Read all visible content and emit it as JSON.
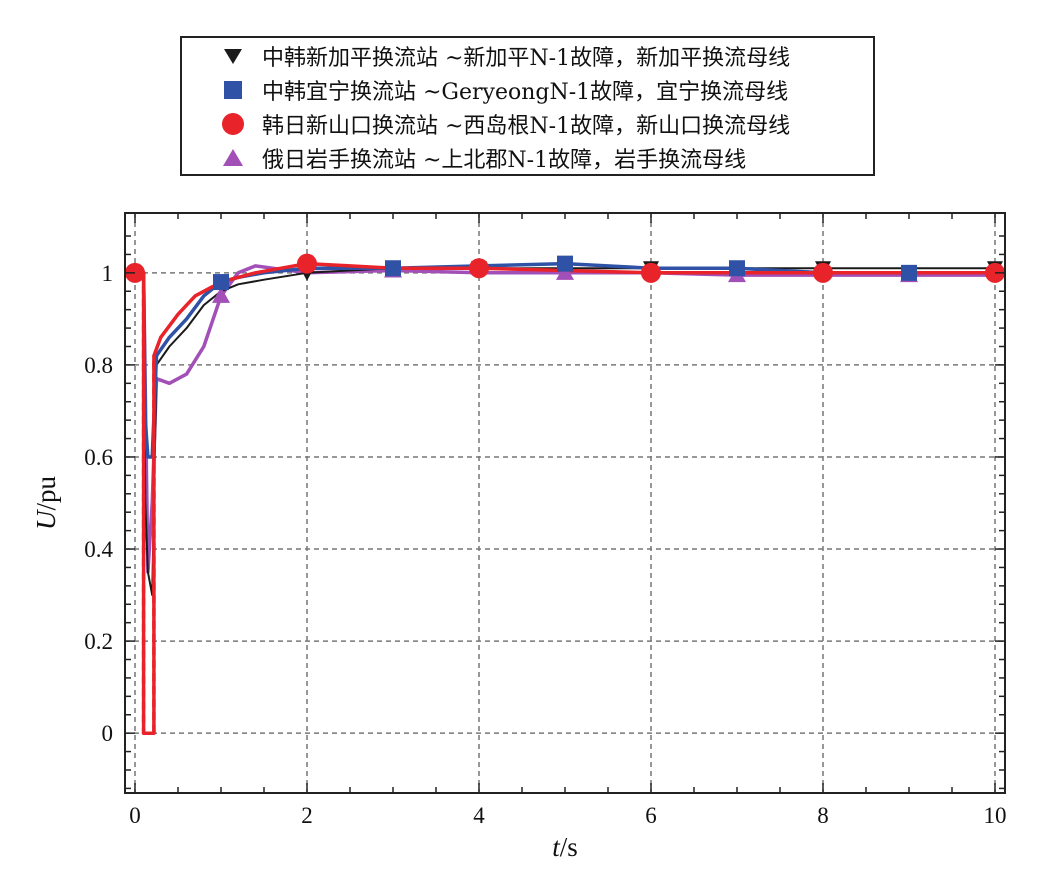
{
  "colors": {
    "black": "#1a1a1a",
    "blue": "#2f52a6",
    "red": "#e8232a",
    "purple": "#a24fb8",
    "grid": "#777777",
    "axis": "#222222"
  },
  "chart_data": {
    "type": "line",
    "xlabel": "t/s",
    "xlabel_var": "t",
    "xlabel_unit": "/s",
    "ylabel": "U/pu",
    "ylabel_var": "U",
    "ylabel_unit": "/pu",
    "xlim": [
      0,
      10
    ],
    "ylim": [
      -0.13,
      1.13
    ],
    "xticks": [
      0,
      2,
      4,
      6,
      8,
      10
    ],
    "yticks": [
      0,
      0.2,
      0.4,
      0.6,
      0.8,
      1
    ],
    "xtick_labels": [
      "0",
      "2",
      "4",
      "6",
      "8",
      "10"
    ],
    "ytick_labels": [
      "0",
      "0.2",
      "0.4",
      "0.6",
      "0.8",
      "1"
    ],
    "grid": true,
    "legend_position": "top-center, above plot",
    "series": [
      {
        "name": "中韩新加平换流站 ~新加平N-1故障，新加平换流母线",
        "color_key": "black",
        "marker": "triangle-down",
        "dip": {
          "t_start": 0.1,
          "t_min": 0.2,
          "min": 0.3
        },
        "x": [
          0,
          0.1,
          0.12,
          0.15,
          0.2,
          0.25,
          0.4,
          0.6,
          0.8,
          1.0,
          1.2,
          1.5,
          2.0,
          3.0,
          4.0,
          5.0,
          6.0,
          7.0,
          8.0,
          9.0,
          10.0
        ],
        "y": [
          1.0,
          1.0,
          0.5,
          0.35,
          0.3,
          0.8,
          0.84,
          0.88,
          0.93,
          0.96,
          0.975,
          0.985,
          1.0,
          1.01,
          1.01,
          1.01,
          1.01,
          1.01,
          1.01,
          1.01,
          1.01
        ],
        "marker_x": [
          2,
          4,
          6,
          8,
          10
        ]
      },
      {
        "name": "中韩宜宁换流站 ~GeryeongN-1故障，宜宁换流母线",
        "color_key": "blue",
        "marker": "square",
        "x": [
          0,
          0.1,
          0.12,
          0.15,
          0.2,
          0.25,
          0.4,
          0.6,
          0.8,
          1.0,
          1.2,
          1.5,
          2.0,
          3.0,
          4.0,
          5.0,
          6.0,
          7.0,
          8.0,
          9.0,
          10.0
        ],
        "y": [
          1.0,
          1.0,
          0.68,
          0.6,
          0.6,
          0.82,
          0.86,
          0.9,
          0.95,
          0.98,
          0.99,
          1.0,
          1.01,
          1.01,
          1.015,
          1.02,
          1.01,
          1.01,
          1.0,
          1.0,
          1.0
        ],
        "marker_x": [
          1,
          3,
          5,
          7,
          9
        ]
      },
      {
        "name": "韩日新山口换流站 ~西岛根N-1故障，新山口换流母线",
        "color_key": "red",
        "marker": "circle",
        "x": [
          0,
          0.1,
          0.1,
          0.22,
          0.22,
          0.3,
          0.5,
          0.7,
          0.9,
          1.1,
          1.4,
          1.7,
          2.0,
          2.5,
          3.0,
          4.0,
          5.0,
          6.0,
          7.0,
          8.0,
          9.0,
          10.0
        ],
        "y": [
          1.0,
          1.0,
          0.0,
          0.0,
          0.82,
          0.86,
          0.91,
          0.95,
          0.97,
          0.985,
          1.0,
          1.01,
          1.02,
          1.015,
          1.01,
          1.01,
          1.005,
          1.0,
          1.0,
          1.0,
          1.0,
          1.0
        ],
        "marker_x": [
          0,
          2,
          4,
          6,
          8,
          10
        ]
      },
      {
        "name": "俄日岩手换流站 ~上北郡N-1故障，岩手换流母线",
        "color_key": "purple",
        "marker": "triangle-up",
        "x": [
          0,
          0.1,
          0.15,
          0.2,
          0.25,
          0.4,
          0.6,
          0.8,
          1.0,
          1.2,
          1.4,
          1.6,
          2.0,
          3.0,
          4.0,
          5.0,
          6.0,
          7.0,
          8.0,
          9.0,
          10.0
        ],
        "y": [
          1.0,
          1.0,
          0.35,
          0.5,
          0.77,
          0.76,
          0.78,
          0.84,
          0.95,
          1.0,
          1.015,
          1.01,
          1.0,
          1.005,
          1.0,
          1.0,
          1.0,
          0.995,
          0.995,
          0.995,
          0.995
        ],
        "marker_x": [
          1,
          3,
          5,
          7,
          9
        ]
      }
    ]
  }
}
